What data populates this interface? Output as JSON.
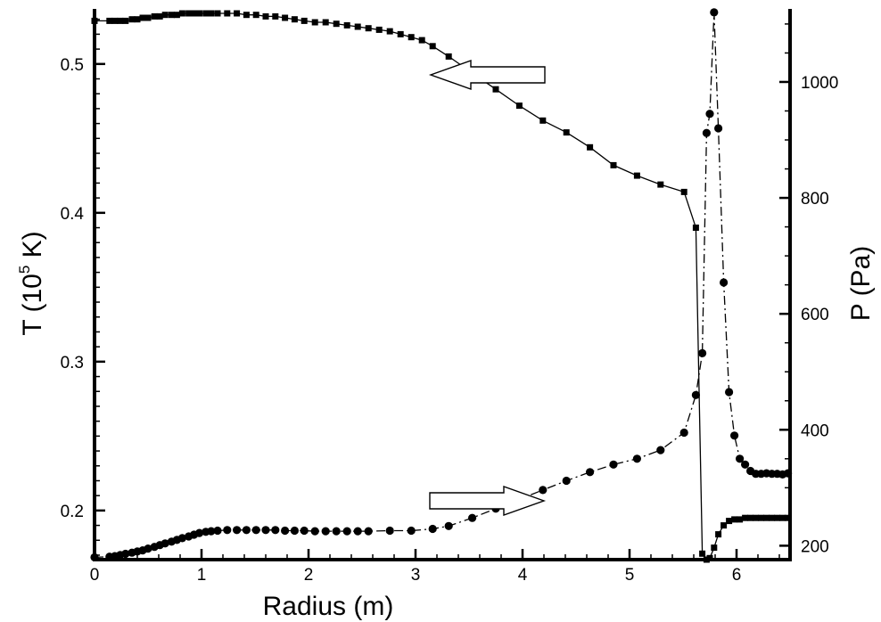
{
  "chart_data": {
    "type": "line",
    "xlabel": "Radius (m)",
    "ylabel_left": {
      "prefix": "T (10",
      "exp": "5",
      "suffix": " K)"
    },
    "ylabel_right": "P (Pa)",
    "xlim": [
      0,
      6.5
    ],
    "ylim_left": [
      0.167,
      0.537
    ],
    "ylim_right": [
      176,
      1126
    ],
    "x_ticks": [
      {
        "v": 0,
        "label": "0"
      },
      {
        "v": 1,
        "label": "1"
      },
      {
        "v": 2,
        "label": "2"
      },
      {
        "v": 3,
        "label": "3"
      },
      {
        "v": 4,
        "label": "4"
      },
      {
        "v": 5,
        "label": "5"
      },
      {
        "v": 6,
        "label": "6"
      }
    ],
    "y_left_ticks": [
      {
        "v": 0.2,
        "label": "0.2"
      },
      {
        "v": 0.3,
        "label": "0.3"
      },
      {
        "v": 0.4,
        "label": "0.4"
      },
      {
        "v": 0.5,
        "label": "0.5"
      }
    ],
    "y_right_ticks": [
      {
        "v": 200,
        "label": "200"
      },
      {
        "v": 400,
        "label": "400"
      },
      {
        "v": 600,
        "label": "600"
      },
      {
        "v": 800,
        "label": "800"
      },
      {
        "v": 1000,
        "label": "1000"
      }
    ],
    "grid": false,
    "series": [
      {
        "axis": "left",
        "marker": "square",
        "line": "solid",
        "x": [
          0.0,
          0.14,
          0.19,
          0.24,
          0.29,
          0.35,
          0.4,
          0.45,
          0.5,
          0.56,
          0.61,
          0.66,
          0.72,
          0.77,
          0.82,
          0.88,
          0.93,
          0.98,
          1.04,
          1.09,
          1.15,
          1.24,
          1.33,
          1.42,
          1.51,
          1.6,
          1.69,
          1.78,
          1.87,
          1.96,
          2.06,
          2.16,
          2.26,
          2.36,
          2.46,
          2.56,
          2.66,
          2.76,
          2.86,
          2.96,
          3.06,
          3.16,
          3.31,
          3.53,
          3.75,
          3.97,
          4.19,
          4.41,
          4.63,
          4.85,
          5.07,
          5.29,
          5.51,
          5.62,
          5.68,
          5.72,
          5.75,
          5.79,
          5.83,
          5.88,
          5.93,
          5.98,
          6.03,
          6.08,
          6.13,
          6.18,
          6.23,
          6.28,
          6.33,
          6.38,
          6.43,
          6.48
        ],
        "y": [
          0.529,
          0.529,
          0.529,
          0.529,
          0.529,
          0.53,
          0.53,
          0.531,
          0.531,
          0.532,
          0.532,
          0.533,
          0.533,
          0.533,
          0.534,
          0.534,
          0.534,
          0.534,
          0.534,
          0.534,
          0.534,
          0.534,
          0.534,
          0.533,
          0.533,
          0.532,
          0.532,
          0.531,
          0.53,
          0.529,
          0.528,
          0.528,
          0.527,
          0.526,
          0.525,
          0.524,
          0.523,
          0.522,
          0.52,
          0.518,
          0.516,
          0.512,
          0.505,
          0.494,
          0.483,
          0.472,
          0.462,
          0.454,
          0.444,
          0.432,
          0.425,
          0.419,
          0.414,
          0.39,
          0.171,
          0.167,
          0.168,
          0.175,
          0.184,
          0.19,
          0.193,
          0.194,
          0.194,
          0.195,
          0.195,
          0.195,
          0.195,
          0.195,
          0.195,
          0.195,
          0.195,
          0.195
        ]
      },
      {
        "axis": "right",
        "marker": "circle",
        "line": "dashdot",
        "x": [
          0.0,
          0.14,
          0.19,
          0.24,
          0.29,
          0.35,
          0.4,
          0.45,
          0.5,
          0.56,
          0.61,
          0.66,
          0.72,
          0.77,
          0.82,
          0.88,
          0.93,
          0.98,
          1.04,
          1.09,
          1.15,
          1.24,
          1.33,
          1.42,
          1.51,
          1.6,
          1.69,
          1.78,
          1.87,
          1.96,
          2.06,
          2.16,
          2.26,
          2.36,
          2.46,
          2.56,
          2.76,
          2.96,
          3.16,
          3.31,
          3.53,
          3.75,
          3.97,
          4.19,
          4.41,
          4.63,
          4.85,
          5.07,
          5.29,
          5.51,
          5.62,
          5.68,
          5.72,
          5.75,
          5.79,
          5.83,
          5.88,
          5.93,
          5.98,
          6.03,
          6.08,
          6.13,
          6.18,
          6.23,
          6.28,
          6.33,
          6.38,
          6.43,
          6.48
        ],
        "y": [
          180,
          181,
          182,
          184,
          186,
          188,
          190,
          192,
          195,
          198,
          201,
          204,
          207,
          210,
          213,
          216,
          219,
          222,
          224,
          225,
          226,
          227,
          227,
          227,
          227,
          227,
          227,
          226,
          226,
          226,
          225,
          225,
          225,
          225,
          225,
          225,
          226,
          226,
          229,
          234,
          248,
          264,
          280,
          296,
          312,
          327,
          340,
          350,
          365,
          395,
          460,
          532,
          912,
          945,
          1120,
          920,
          654,
          465,
          390,
          350,
          340,
          329,
          324,
          324,
          325,
          324,
          324,
          323,
          325
        ]
      }
    ],
    "annotations": [
      {
        "type": "hollow-arrow",
        "direction": "left",
        "points_to_axis": "left"
      },
      {
        "type": "hollow-arrow",
        "direction": "right",
        "points_to_axis": "right"
      }
    ]
  }
}
